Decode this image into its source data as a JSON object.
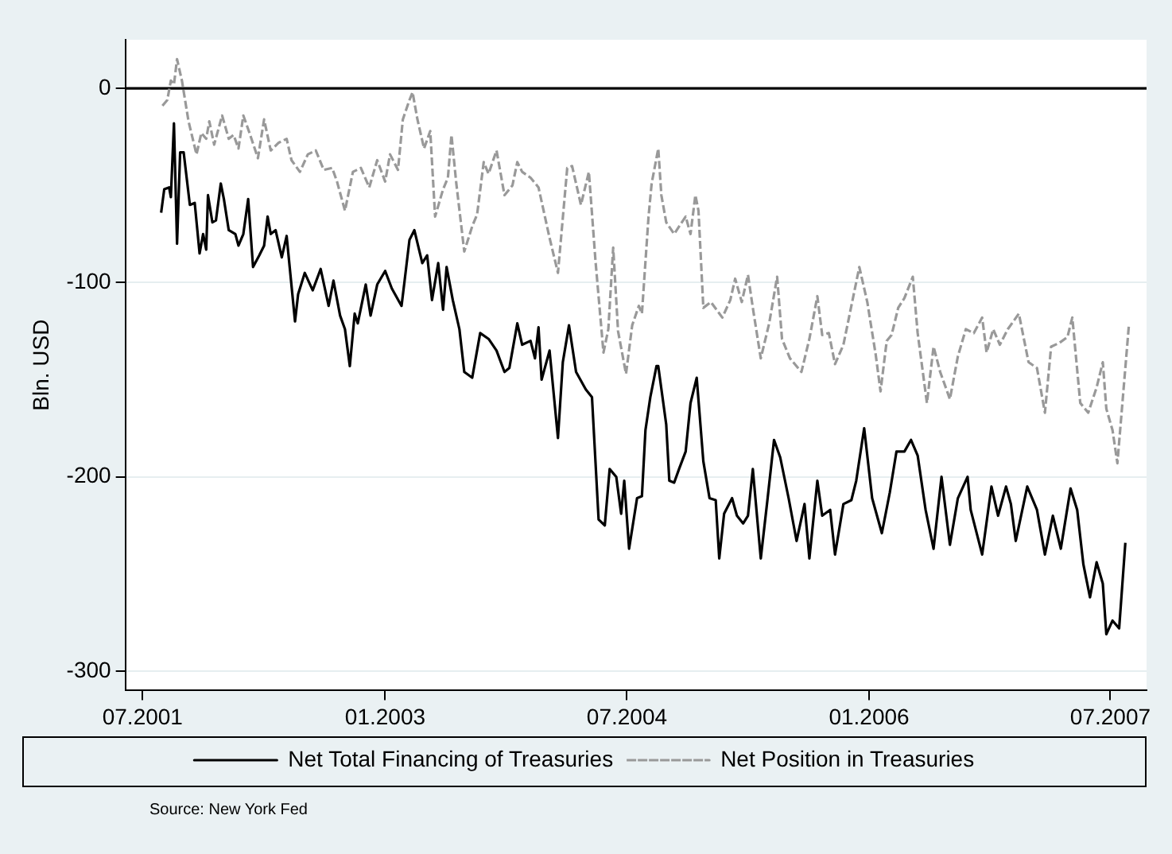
{
  "chart_data": {
    "type": "line",
    "ylabel": "Bln. USD",
    "xlim": [
      "2001-05-23",
      "2007-09-21"
    ],
    "ylim": [
      -310,
      25
    ],
    "xticks": [
      {
        "value": "2001-07-01",
        "label": "07.2001"
      },
      {
        "value": "2003-01-01",
        "label": "01.2003"
      },
      {
        "value": "2004-07-01",
        "label": "07.2004"
      },
      {
        "value": "2006-01-01",
        "label": "01.2006"
      },
      {
        "value": "2007-07-01",
        "label": "07.2007"
      }
    ],
    "yticks": [
      0,
      -100,
      -200,
      -300
    ],
    "grid": "y",
    "legend": "bottom",
    "marker": "none",
    "ref_lines": [
      {
        "axis": "y",
        "value": 0,
        "color": "#000000"
      }
    ],
    "annotations": [
      "Source: New York Fed"
    ],
    "series": [
      {
        "name": "Net Total Financing of Treasuries",
        "color": "#000000",
        "line_style": "solid",
        "x": [
          "2001-08-12",
          "2001-08-19",
          "2001-08-30",
          "2001-09-03",
          "2001-09-10",
          "2001-09-17",
          "2001-09-24",
          "2001-10-02",
          "2001-10-16",
          "2001-10-27",
          "2001-11-07",
          "2001-11-15",
          "2001-11-22",
          "2001-11-26",
          "2001-12-06",
          "2001-12-14",
          "2001-12-25",
          "2002-01-01",
          "2002-01-12",
          "2002-01-27",
          "2002-02-03",
          "2002-02-14",
          "2002-02-25",
          "2002-03-08",
          "2002-03-22",
          "2002-04-02",
          "2002-04-10",
          "2002-04-17",
          "2002-04-28",
          "2002-05-12",
          "2002-05-23",
          "2002-06-11",
          "2002-06-18",
          "2002-07-03",
          "2002-07-21",
          "2002-08-08",
          "2002-08-26",
          "2002-09-06",
          "2002-09-21",
          "2002-10-02",
          "2002-10-13",
          "2002-10-24",
          "2002-10-31",
          "2002-11-18",
          "2002-11-29",
          "2002-12-14",
          "2003-01-01",
          "2003-01-16",
          "2003-02-07",
          "2003-02-14",
          "2003-02-25",
          "2003-03-08",
          "2003-03-26",
          "2003-04-06",
          "2003-04-17",
          "2003-05-01",
          "2003-05-12",
          "2003-05-20",
          "2003-06-03",
          "2003-06-18",
          "2003-06-29",
          "2003-07-17",
          "2003-08-04",
          "2003-08-23",
          "2003-09-10",
          "2003-09-28",
          "2003-10-09",
          "2003-10-27",
          "2003-11-07",
          "2003-11-26",
          "2003-12-06",
          "2003-12-14",
          "2003-12-21",
          "2004-01-08",
          "2004-01-27",
          "2004-02-07",
          "2004-02-21",
          "2004-03-08",
          "2004-03-30",
          "2004-04-13",
          "2004-04-28",
          "2004-05-12",
          "2004-05-23",
          "2004-06-07",
          "2004-06-18",
          "2004-06-25",
          "2004-07-06",
          "2004-07-24",
          "2004-08-04",
          "2004-08-12",
          "2004-08-23",
          "2004-09-06",
          "2004-09-10",
          "2004-09-28",
          "2004-10-05",
          "2004-10-16",
          "2004-10-27",
          "2004-11-11",
          "2004-11-22",
          "2004-12-06",
          "2004-12-21",
          "2005-01-05",
          "2005-01-19",
          "2005-01-27",
          "2005-02-07",
          "2005-02-25",
          "2005-03-08",
          "2005-03-22",
          "2005-04-02",
          "2005-04-13",
          "2005-05-01",
          "2005-05-16",
          "2005-05-31",
          "2005-06-14",
          "2005-07-03",
          "2005-07-21",
          "2005-08-08",
          "2005-08-19",
          "2005-09-06",
          "2005-09-17",
          "2005-10-05",
          "2005-10-16",
          "2005-11-04",
          "2005-11-22",
          "2005-12-03",
          "2005-12-21",
          "2006-01-08",
          "2006-01-30",
          "2006-02-17",
          "2006-03-04",
          "2006-03-22",
          "2006-04-06",
          "2006-04-21",
          "2006-05-09",
          "2006-05-27",
          "2006-06-14",
          "2006-07-03",
          "2006-07-21",
          "2006-08-12",
          "2006-08-19",
          "2006-09-14",
          "2006-10-05",
          "2006-10-20",
          "2006-11-07",
          "2006-11-18",
          "2006-11-29",
          "2006-12-25",
          "2007-01-16",
          "2007-02-03",
          "2007-02-21",
          "2007-03-11",
          "2007-04-02",
          "2007-04-17",
          "2007-05-01",
          "2007-05-16",
          "2007-05-31",
          "2007-06-14",
          "2007-06-22",
          "2007-07-06",
          "2007-07-21",
          "2007-08-04"
        ],
        "values": [
          -64,
          -52,
          -51,
          -56,
          -18,
          -80,
          -33,
          -33,
          -60,
          -59,
          -85,
          -75,
          -83,
          -55,
          -69,
          -68,
          -49,
          -57,
          -73,
          -75,
          -81,
          -75,
          -57,
          -92,
          -86,
          -81,
          -66,
          -75,
          -73,
          -87,
          -76,
          -120,
          -106,
          -95,
          -104,
          -93,
          -112,
          -99,
          -117,
          -124,
          -143,
          -116,
          -121,
          -101,
          -117,
          -101,
          -94,
          -103,
          -112,
          -99,
          -78,
          -73,
          -90,
          -86,
          -109,
          -90,
          -114,
          -92,
          -109,
          -124,
          -146,
          -149,
          -126,
          -129,
          -135,
          -146,
          -144,
          -121,
          -132,
          -130,
          -139,
          -123,
          -150,
          -135,
          -180,
          -141,
          -122,
          -146,
          -155,
          -159,
          -222,
          -225,
          -196,
          -200,
          -219,
          -202,
          -237,
          -211,
          -210,
          -176,
          -159,
          -143,
          -143,
          -173,
          -202,
          -203,
          -196,
          -187,
          -162,
          -149,
          -192,
          -211,
          -212,
          -242,
          -219,
          -211,
          -220,
          -224,
          -220,
          -196,
          -242,
          -212,
          -181,
          -190,
          -211,
          -233,
          -214,
          -242,
          -202,
          -220,
          -217,
          -240,
          -214,
          -212,
          -202,
          -175,
          -211,
          -229,
          -208,
          -187,
          -187,
          -181,
          -189,
          -217,
          -237,
          -200,
          -235,
          -211,
          -200,
          -217,
          -240,
          -205,
          -220,
          -205,
          -214,
          -233,
          -205,
          -217,
          -240,
          -220,
          -237,
          -206,
          -217,
          -245,
          -262,
          -244,
          -255,
          -281,
          -274,
          -278,
          -234
        ]
      },
      {
        "name": "Net Position in Treasuries",
        "color": "#999999",
        "line_style": "dashed",
        "x": [
          "2001-08-15",
          "2001-08-26",
          "2001-09-03",
          "2001-09-10",
          "2001-09-17",
          "2001-09-28",
          "2001-10-13",
          "2001-10-31",
          "2001-11-11",
          "2001-11-22",
          "2001-11-29",
          "2001-12-10",
          "2001-12-28",
          "2002-01-12",
          "2002-01-23",
          "2002-02-03",
          "2002-02-14",
          "2002-02-28",
          "2002-03-19",
          "2002-04-02",
          "2002-04-17",
          "2002-05-05",
          "2002-05-23",
          "2002-06-03",
          "2002-06-22",
          "2002-07-10",
          "2002-07-28",
          "2002-08-15",
          "2002-09-03",
          "2002-09-14",
          "2002-10-02",
          "2002-10-20",
          "2002-11-07",
          "2002-11-26",
          "2002-12-14",
          "2003-01-01",
          "2003-01-12",
          "2003-01-30",
          "2003-02-10",
          "2003-02-25",
          "2003-03-04",
          "2003-03-15",
          "2003-03-30",
          "2003-04-13",
          "2003-04-24",
          "2003-05-12",
          "2003-05-23",
          "2003-05-31",
          "2003-06-11",
          "2003-06-29",
          "2003-07-17",
          "2003-07-28",
          "2003-08-12",
          "2003-08-23",
          "2003-09-10",
          "2003-09-28",
          "2003-10-16",
          "2003-10-27",
          "2003-11-07",
          "2003-11-26",
          "2003-12-14",
          "2004-01-08",
          "2004-01-27",
          "2004-02-17",
          "2004-02-28",
          "2004-03-19",
          "2004-04-06",
          "2004-04-21",
          "2004-05-09",
          "2004-05-20",
          "2004-05-31",
          "2004-06-11",
          "2004-06-29",
          "2004-07-13",
          "2004-07-28",
          "2004-08-04",
          "2004-08-19",
          "2004-08-26",
          "2004-09-10",
          "2004-09-17",
          "2004-09-28",
          "2004-10-16",
          "2004-11-11",
          "2004-11-22",
          "2004-12-03",
          "2004-12-10",
          "2004-12-21",
          "2005-01-08",
          "2005-02-03",
          "2005-02-21",
          "2005-03-04",
          "2005-03-19",
          "2005-04-02",
          "2005-04-13",
          "2005-05-01",
          "2005-05-20",
          "2005-06-07",
          "2005-06-18",
          "2005-07-06",
          "2005-08-01",
          "2005-08-19",
          "2005-09-06",
          "2005-09-17",
          "2005-10-02",
          "2005-10-16",
          "2005-11-04",
          "2005-11-22",
          "2005-12-10",
          "2005-12-28",
          "2006-01-16",
          "2006-01-27",
          "2006-02-10",
          "2006-02-21",
          "2006-03-08",
          "2006-03-22",
          "2006-04-10",
          "2006-04-21",
          "2006-05-12",
          "2006-05-27",
          "2006-06-11",
          "2006-07-03",
          "2006-07-21",
          "2006-08-08",
          "2006-08-26",
          "2006-09-14",
          "2006-09-24",
          "2006-10-09",
          "2006-10-24",
          "2006-11-11",
          "2006-12-06",
          "2006-12-28",
          "2007-01-16",
          "2007-02-03",
          "2007-02-17",
          "2007-03-08",
          "2007-03-26",
          "2007-04-06",
          "2007-04-24",
          "2007-05-12",
          "2007-05-31",
          "2007-06-14",
          "2007-06-22",
          "2007-07-06",
          "2007-07-17",
          "2007-08-12"
        ],
        "values": [
          -9,
          -6,
          4,
          2,
          15,
          4,
          -17,
          -34,
          -23,
          -26,
          -17,
          -29,
          -14,
          -26,
          -24,
          -31,
          -14,
          -23,
          -36,
          -16,
          -32,
          -28,
          -26,
          -37,
          -43,
          -34,
          -32,
          -42,
          -41,
          -48,
          -63,
          -43,
          -41,
          -51,
          -37,
          -48,
          -34,
          -42,
          -16,
          -6,
          -2,
          -16,
          -31,
          -22,
          -66,
          -52,
          -46,
          -24,
          -49,
          -84,
          -71,
          -65,
          -38,
          -44,
          -32,
          -55,
          -50,
          -38,
          -43,
          -46,
          -51,
          -77,
          -95,
          -41,
          -40,
          -60,
          -43,
          -89,
          -136,
          -124,
          -82,
          -125,
          -147,
          -122,
          -112,
          -116,
          -66,
          -49,
          -31,
          -55,
          -69,
          -75,
          -66,
          -75,
          -55,
          -63,
          -113,
          -110,
          -118,
          -109,
          -98,
          -110,
          -96,
          -113,
          -139,
          -121,
          -97,
          -129,
          -139,
          -146,
          -129,
          -107,
          -127,
          -126,
          -142,
          -132,
          -112,
          -92,
          -110,
          -137,
          -156,
          -130,
          -127,
          -113,
          -108,
          -97,
          -126,
          -162,
          -133,
          -146,
          -160,
          -138,
          -124,
          -126,
          -118,
          -136,
          -124,
          -132,
          -124,
          -116,
          -141,
          -144,
          -167,
          -133,
          -131,
          -128,
          -118,
          -162,
          -167,
          -154,
          -141,
          -165,
          -176,
          -193,
          -122
        ]
      }
    ]
  }
}
